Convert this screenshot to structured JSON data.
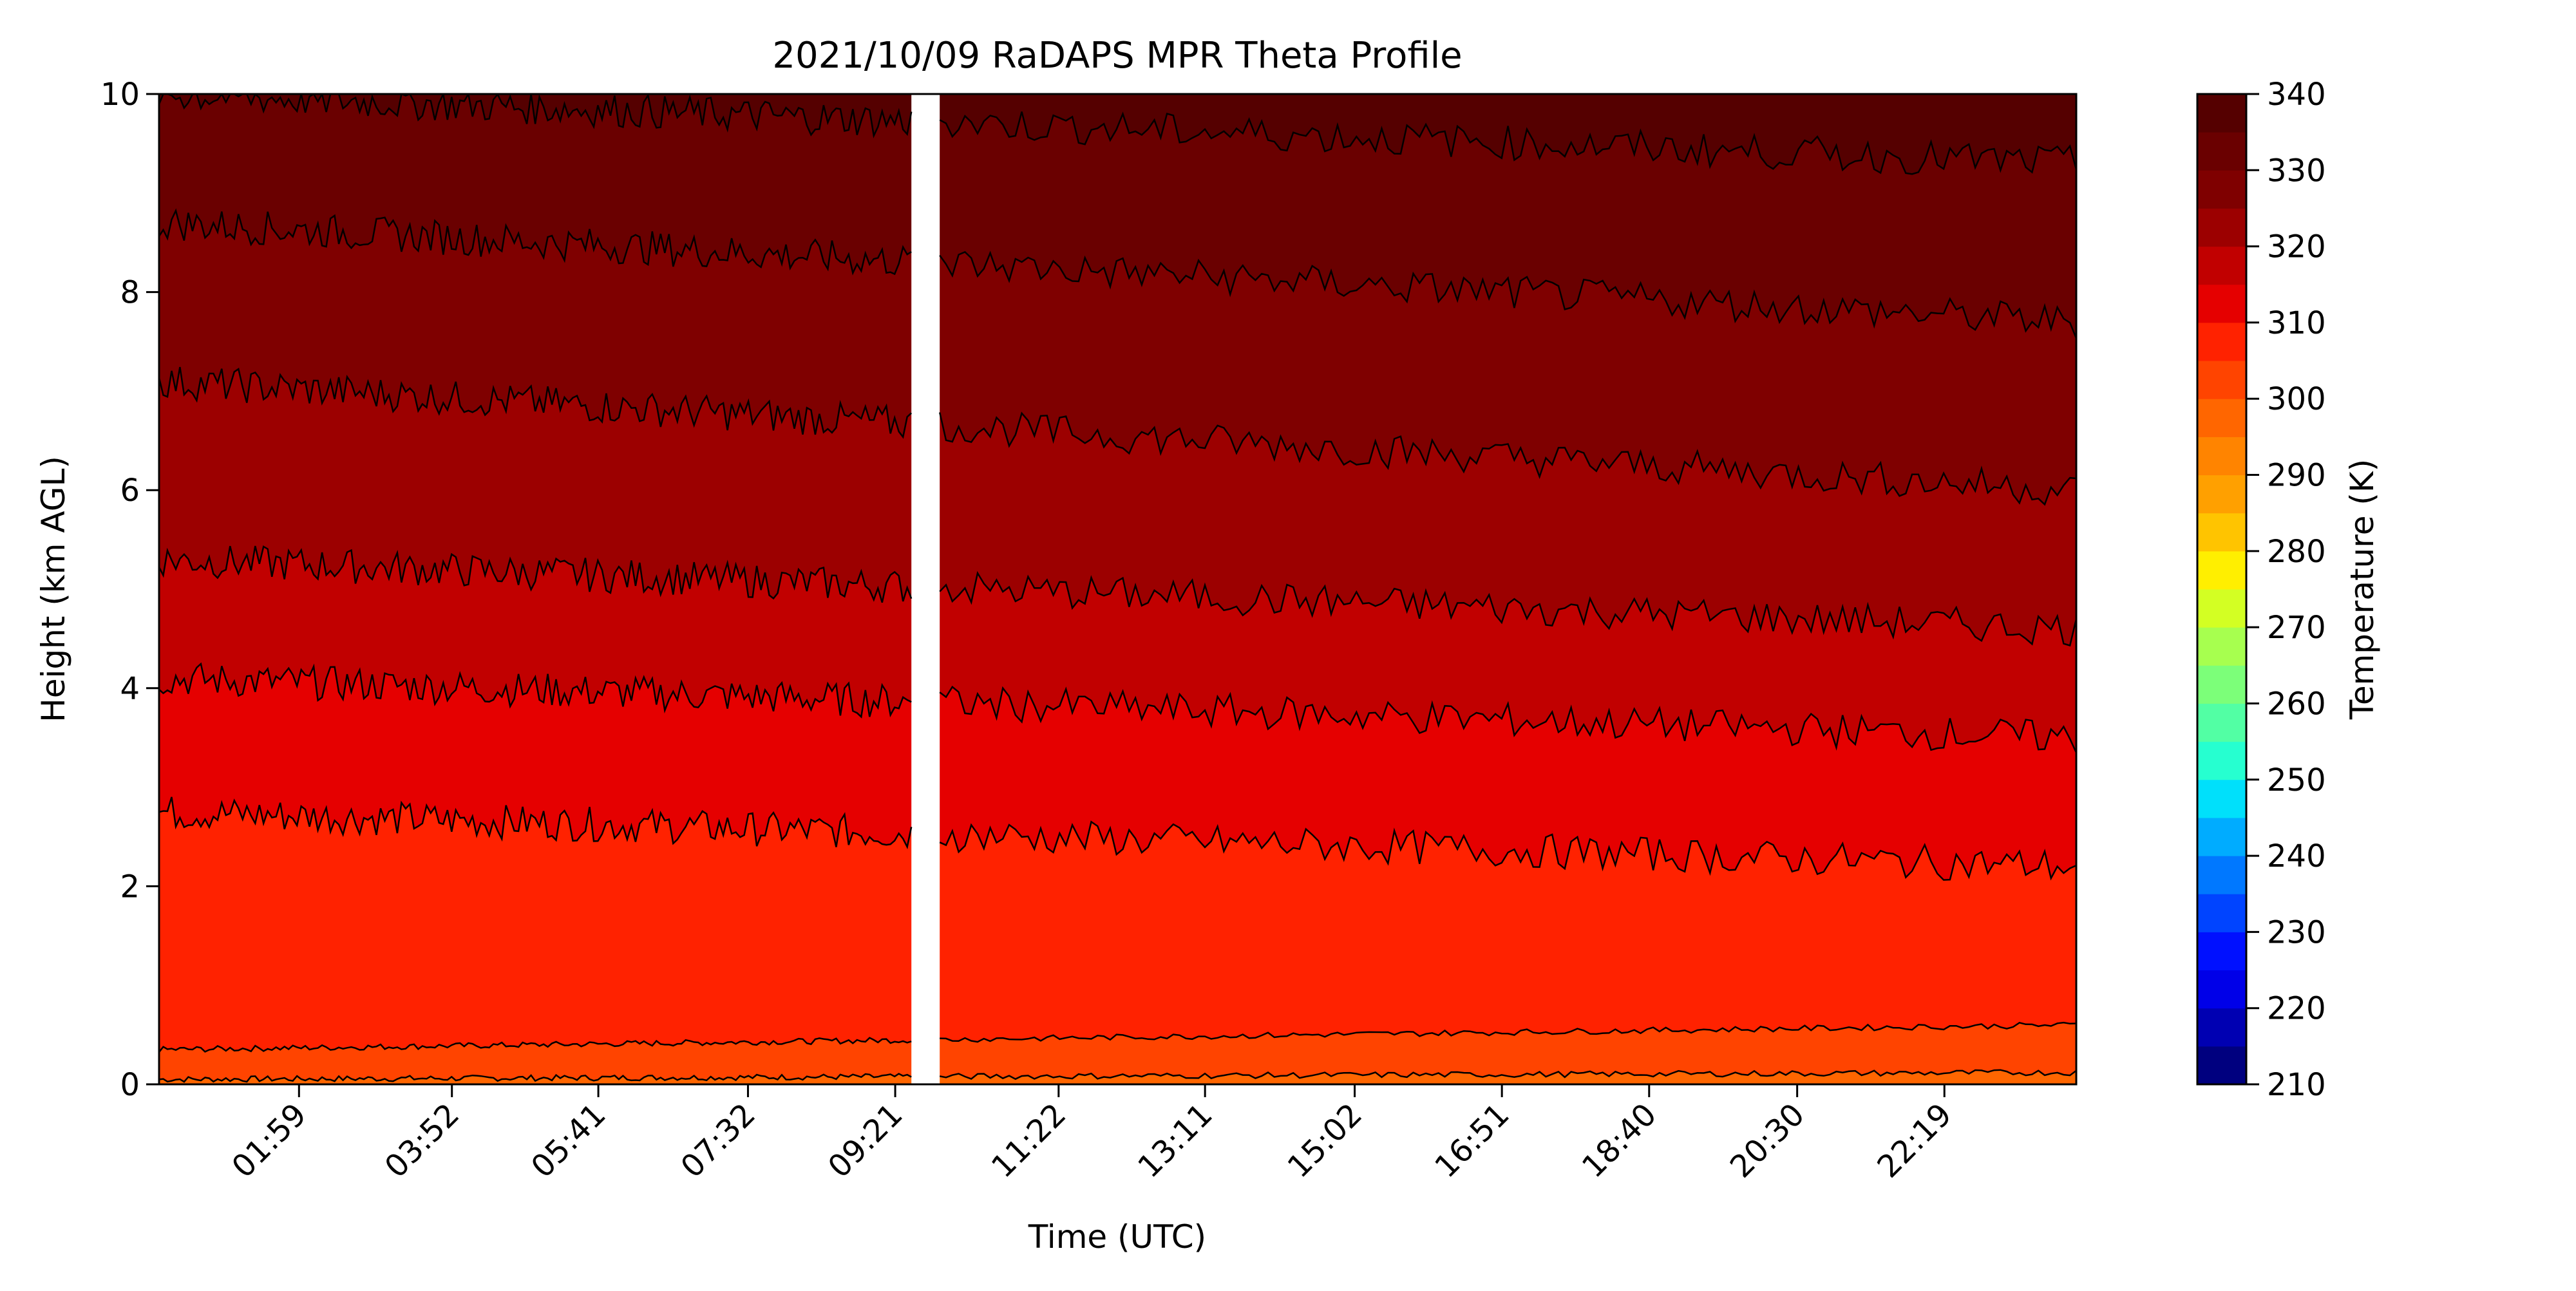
{
  "chart_data": {
    "type": "contourf",
    "title": "2021/10/09 RaDAPS MPR Theta Profile",
    "xlabel": "Time (UTC)",
    "ylabel": "Height (km AGL)",
    "colorbar_label": "Temperature (K)",
    "x_ticks": [
      "01:59",
      "03:52",
      "05:41",
      "07:32",
      "09:21",
      "11:22",
      "13:11",
      "15:02",
      "16:51",
      "18:40",
      "20:30",
      "22:19"
    ],
    "x_tick_hours": [
      1.98,
      3.87,
      5.68,
      7.53,
      9.35,
      11.37,
      13.18,
      15.03,
      16.85,
      18.67,
      20.5,
      22.32
    ],
    "xlim_hours": [
      0.25,
      23.95
    ],
    "y_ticks": [
      "0",
      "2",
      "4",
      "6",
      "8",
      "10"
    ],
    "ylim": [
      0,
      10
    ],
    "colorbar_ticks": [
      "210",
      "220",
      "230",
      "240",
      "250",
      "260",
      "270",
      "280",
      "290",
      "300",
      "310",
      "320",
      "330",
      "340"
    ],
    "colorbar_range": [
      210,
      340
    ],
    "colorbar_step": 5,
    "colorbar_colors": [
      "#00007f",
      "#0000b2",
      "#0000e8",
      "#0010ff",
      "#0044ff",
      "#0078ff",
      "#00acff",
      "#00e0fb",
      "#26ffd0",
      "#52ffa4",
      "#7cff79",
      "#a7ff4f",
      "#d3ff23",
      "#ffef00",
      "#ffc400",
      "#ffa000",
      "#ff8400",
      "#ff6600",
      "#ff4400",
      "#ff2200",
      "#e50000",
      "#c10000",
      "#9c0000",
      "#7f0000",
      "#6a0000",
      "#550000"
    ],
    "data_gap_hours": [
      9.55,
      9.9
    ],
    "contour_levels_K": [
      295,
      300,
      305,
      310,
      315,
      320,
      325,
      330,
      335
    ],
    "profile_series": [
      {
        "level_K": 295,
        "height_km_start": 0.05,
        "height_km_end": 0.12
      },
      {
        "level_K": 300,
        "height_km_start": 0.35,
        "height_km_end": 0.6
      },
      {
        "level_K": 305,
        "height_km_start": 2.75,
        "height_km_end": 2.2
      },
      {
        "level_K": 310,
        "height_km_start": 4.1,
        "height_km_end": 3.5
      },
      {
        "level_K": 315,
        "height_km_start": 5.3,
        "height_km_end": 4.6
      },
      {
        "level_K": 320,
        "height_km_start": 7.1,
        "height_km_end": 6.0
      },
      {
        "level_K": 325,
        "height_km_start": 8.7,
        "height_km_end": 7.7
      },
      {
        "level_K": 330,
        "height_km_start": 10.0,
        "height_km_end": 9.3
      }
    ]
  }
}
